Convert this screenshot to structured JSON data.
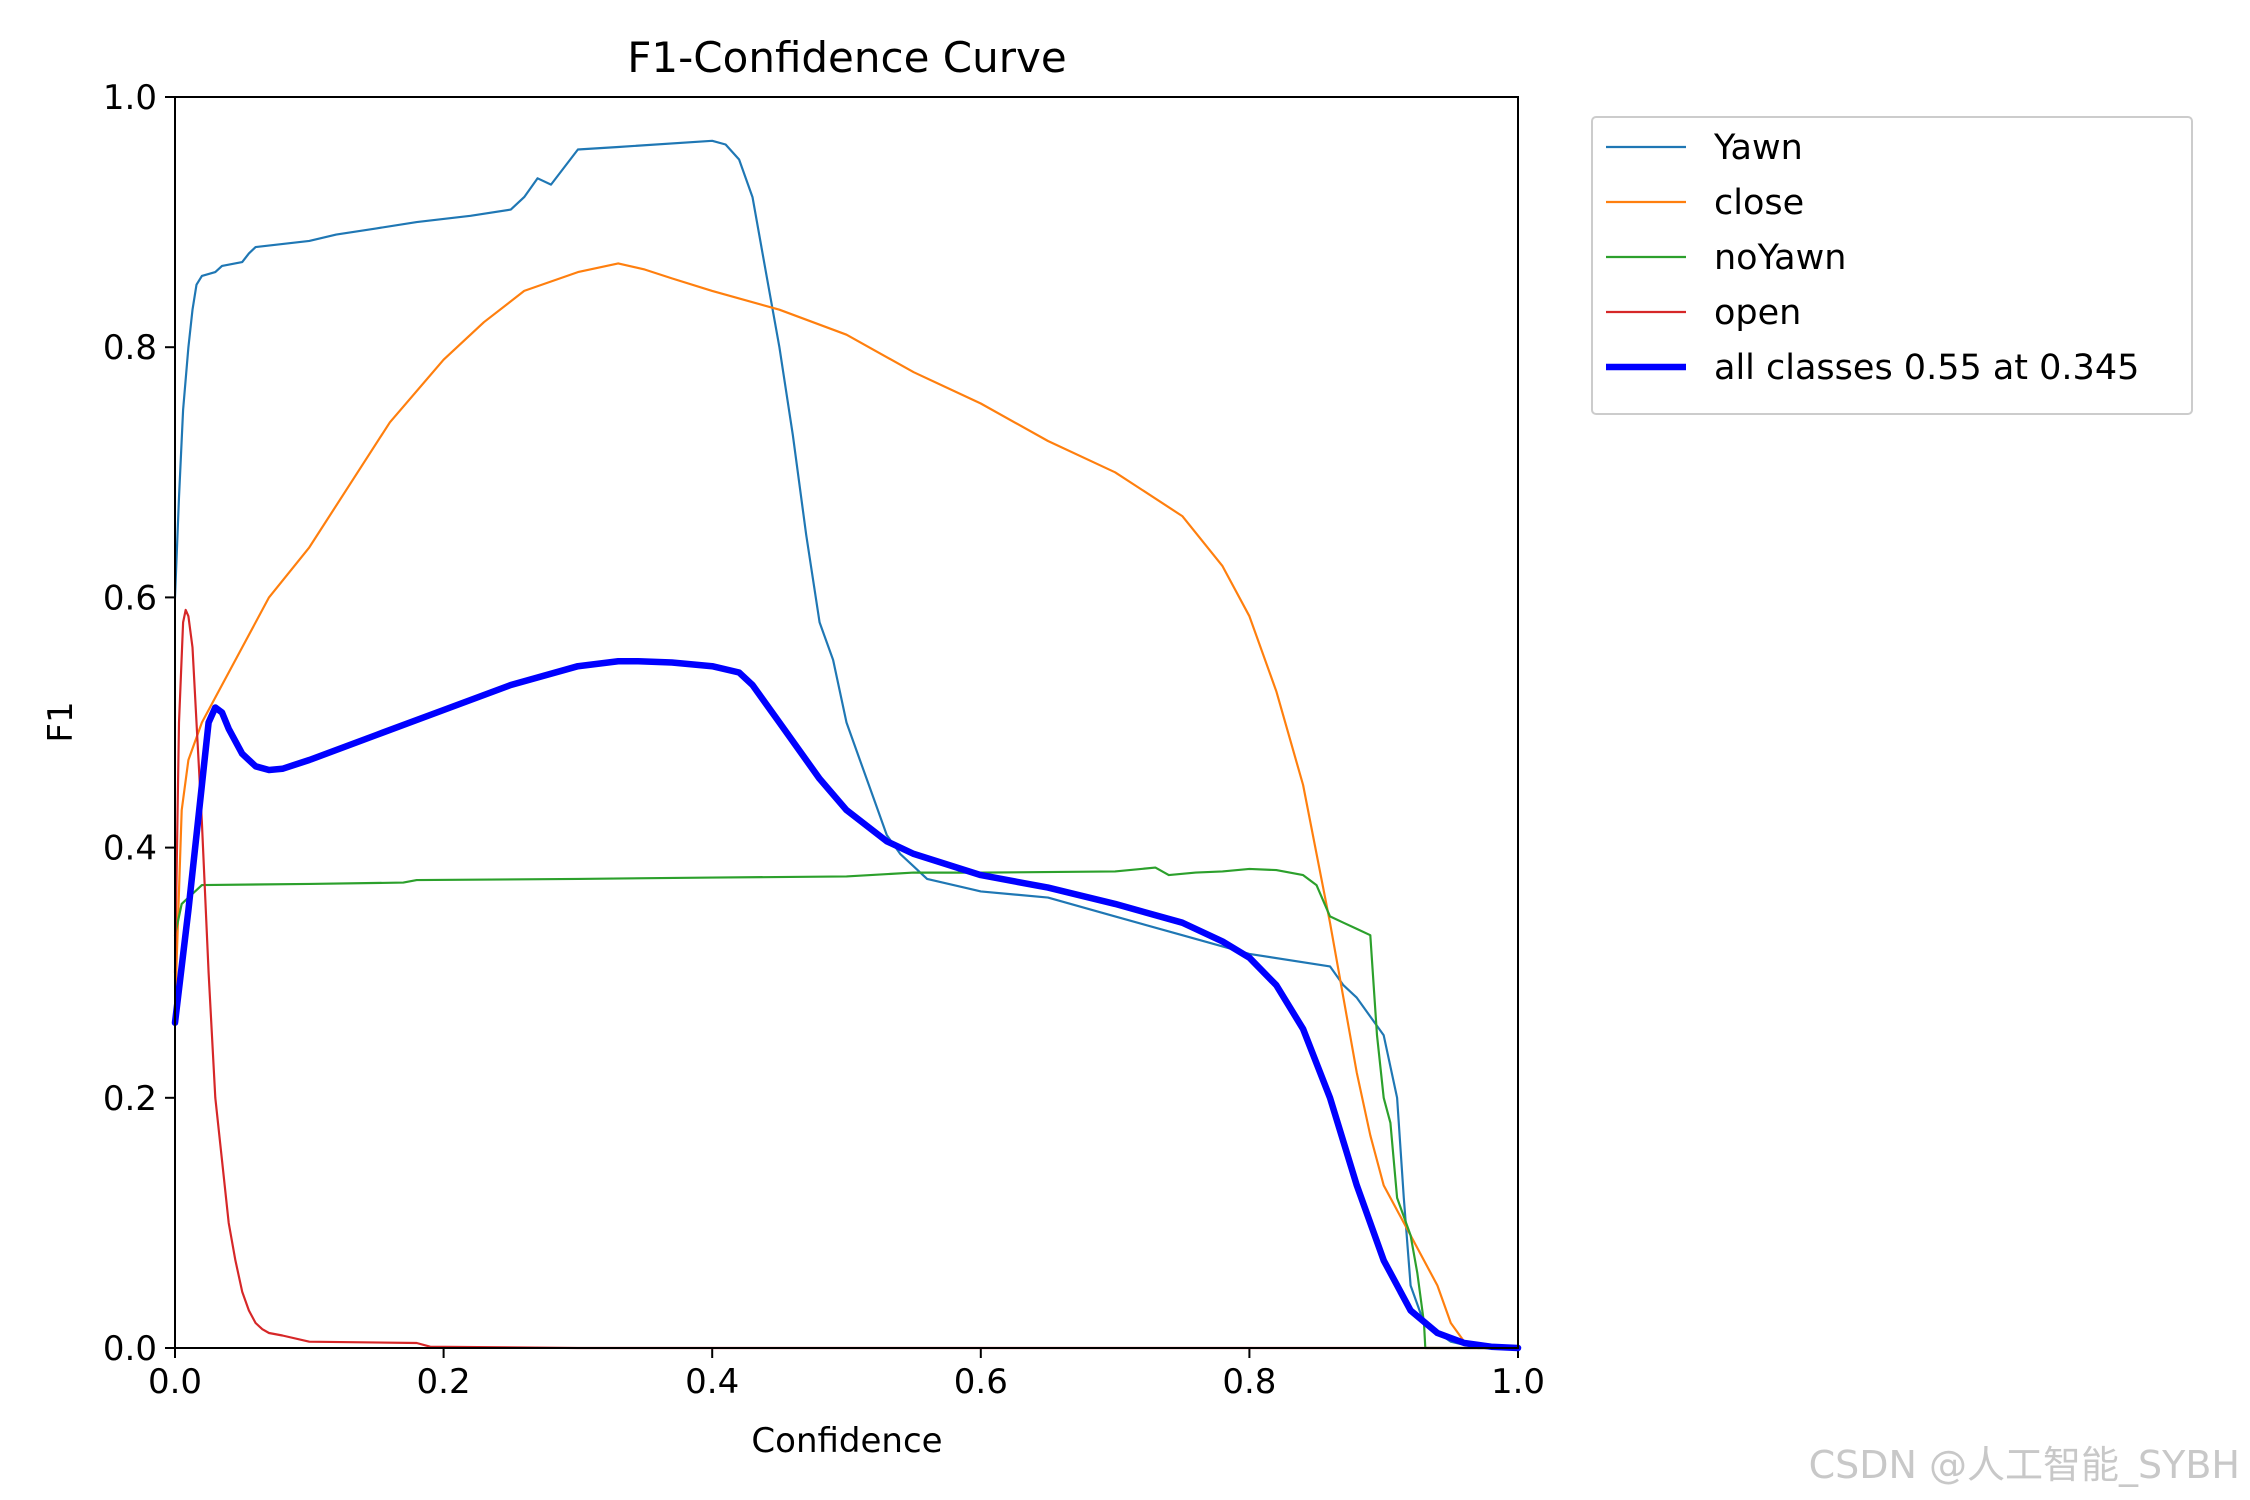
{
  "chart_data": {
    "type": "line",
    "title": "F1-Confidence Curve",
    "xlabel": "Confidence",
    "ylabel": "F1",
    "xlim": [
      0.0,
      1.0
    ],
    "ylim": [
      0.0,
      1.0
    ],
    "xticks": [
      0.0,
      0.2,
      0.4,
      0.6,
      0.8,
      1.0
    ],
    "yticks": [
      0.0,
      0.2,
      0.4,
      0.6,
      0.8,
      1.0
    ],
    "xtick_labels": [
      "0.0",
      "0.2",
      "0.4",
      "0.6",
      "0.8",
      "1.0"
    ],
    "ytick_labels": [
      "0.0",
      "0.2",
      "0.4",
      "0.6",
      "0.8",
      "1.0"
    ],
    "grid": false,
    "legend_position": "outside-top-right",
    "series": [
      {
        "name": "Yawn",
        "color": "#1f77b4",
        "width": 1.5,
        "x": [
          0.0,
          0.003,
          0.006,
          0.01,
          0.013,
          0.016,
          0.02,
          0.03,
          0.035,
          0.05,
          0.055,
          0.06,
          0.1,
          0.12,
          0.15,
          0.18,
          0.22,
          0.25,
          0.26,
          0.27,
          0.28,
          0.3,
          0.33,
          0.4,
          0.41,
          0.42,
          0.43,
          0.44,
          0.45,
          0.46,
          0.47,
          0.48,
          0.49,
          0.5,
          0.51,
          0.52,
          0.53,
          0.54,
          0.55,
          0.56,
          0.6,
          0.65,
          0.7,
          0.75,
          0.8,
          0.86,
          0.87,
          0.88,
          0.9,
          0.91,
          0.915,
          0.92,
          0.93,
          0.95,
          0.97,
          1.0
        ],
        "y": [
          0.6,
          0.68,
          0.75,
          0.8,
          0.83,
          0.85,
          0.857,
          0.86,
          0.865,
          0.868,
          0.875,
          0.88,
          0.885,
          0.89,
          0.895,
          0.9,
          0.905,
          0.91,
          0.92,
          0.935,
          0.93,
          0.958,
          0.96,
          0.965,
          0.962,
          0.95,
          0.92,
          0.86,
          0.8,
          0.73,
          0.65,
          0.58,
          0.55,
          0.5,
          0.47,
          0.44,
          0.41,
          0.395,
          0.385,
          0.375,
          0.365,
          0.36,
          0.345,
          0.33,
          0.315,
          0.305,
          0.29,
          0.28,
          0.25,
          0.2,
          0.12,
          0.05,
          0.02,
          0.005,
          0.0,
          0.0
        ]
      },
      {
        "name": "close",
        "color": "#ff7f0e",
        "width": 1.5,
        "x": [
          0.0,
          0.005,
          0.01,
          0.02,
          0.03,
          0.05,
          0.07,
          0.1,
          0.13,
          0.16,
          0.2,
          0.23,
          0.26,
          0.3,
          0.33,
          0.35,
          0.37,
          0.4,
          0.45,
          0.5,
          0.55,
          0.6,
          0.65,
          0.7,
          0.75,
          0.78,
          0.8,
          0.82,
          0.84,
          0.86,
          0.87,
          0.88,
          0.89,
          0.9,
          0.92,
          0.94,
          0.95,
          0.96,
          1.0
        ],
        "y": [
          0.27,
          0.43,
          0.47,
          0.5,
          0.52,
          0.56,
          0.6,
          0.64,
          0.69,
          0.74,
          0.79,
          0.82,
          0.845,
          0.86,
          0.867,
          0.862,
          0.855,
          0.845,
          0.83,
          0.81,
          0.78,
          0.755,
          0.725,
          0.7,
          0.665,
          0.625,
          0.585,
          0.525,
          0.45,
          0.34,
          0.28,
          0.22,
          0.17,
          0.13,
          0.09,
          0.05,
          0.02,
          0.005,
          0.0
        ]
      },
      {
        "name": "noYawn",
        "color": "#2ca02c",
        "width": 1.5,
        "x": [
          0.0,
          0.005,
          0.01,
          0.02,
          0.1,
          0.17,
          0.18,
          0.3,
          0.4,
          0.5,
          0.55,
          0.6,
          0.7,
          0.73,
          0.74,
          0.76,
          0.78,
          0.8,
          0.82,
          0.84,
          0.85,
          0.86,
          0.87,
          0.88,
          0.89,
          0.895,
          0.9,
          0.905,
          0.91,
          0.92,
          0.925,
          0.93,
          0.931,
          0.96,
          1.0
        ],
        "y": [
          0.33,
          0.355,
          0.36,
          0.37,
          0.371,
          0.372,
          0.374,
          0.375,
          0.376,
          0.377,
          0.38,
          0.38,
          0.381,
          0.384,
          0.378,
          0.38,
          0.381,
          0.383,
          0.382,
          0.378,
          0.37,
          0.345,
          0.34,
          0.335,
          0.33,
          0.25,
          0.2,
          0.18,
          0.12,
          0.09,
          0.06,
          0.02,
          0.0,
          0.0,
          0.0
        ]
      },
      {
        "name": "open",
        "color": "#d62728",
        "width": 1.5,
        "x": [
          0.0,
          0.003,
          0.006,
          0.008,
          0.01,
          0.013,
          0.016,
          0.02,
          0.025,
          0.03,
          0.035,
          0.04,
          0.045,
          0.05,
          0.055,
          0.06,
          0.065,
          0.07,
          0.08,
          0.1,
          0.18,
          0.19,
          0.3,
          0.5,
          0.7,
          1.0
        ],
        "y": [
          0.3,
          0.5,
          0.58,
          0.59,
          0.585,
          0.56,
          0.5,
          0.42,
          0.3,
          0.2,
          0.15,
          0.1,
          0.07,
          0.045,
          0.03,
          0.02,
          0.015,
          0.012,
          0.01,
          0.005,
          0.004,
          0.001,
          0.0,
          0.0,
          0.0,
          0.0
        ]
      },
      {
        "name": "all classes 0.55 at 0.345",
        "color": "#0000ff",
        "width": 4.5,
        "x": [
          0.0,
          0.01,
          0.02,
          0.025,
          0.03,
          0.035,
          0.04,
          0.05,
          0.06,
          0.07,
          0.08,
          0.1,
          0.15,
          0.2,
          0.25,
          0.3,
          0.33,
          0.345,
          0.37,
          0.4,
          0.42,
          0.43,
          0.45,
          0.48,
          0.5,
          0.53,
          0.55,
          0.6,
          0.65,
          0.7,
          0.75,
          0.78,
          0.8,
          0.82,
          0.84,
          0.86,
          0.88,
          0.9,
          0.92,
          0.94,
          0.96,
          0.98,
          1.0
        ],
        "y": [
          0.26,
          0.35,
          0.45,
          0.5,
          0.512,
          0.508,
          0.495,
          0.475,
          0.465,
          0.462,
          0.463,
          0.47,
          0.49,
          0.51,
          0.53,
          0.545,
          0.549,
          0.549,
          0.548,
          0.545,
          0.54,
          0.53,
          0.5,
          0.455,
          0.43,
          0.405,
          0.395,
          0.378,
          0.368,
          0.355,
          0.34,
          0.325,
          0.312,
          0.29,
          0.255,
          0.2,
          0.13,
          0.07,
          0.03,
          0.012,
          0.004,
          0.001,
          0.0
        ]
      }
    ],
    "watermark": "CSDN @人工智能_SYBH"
  }
}
